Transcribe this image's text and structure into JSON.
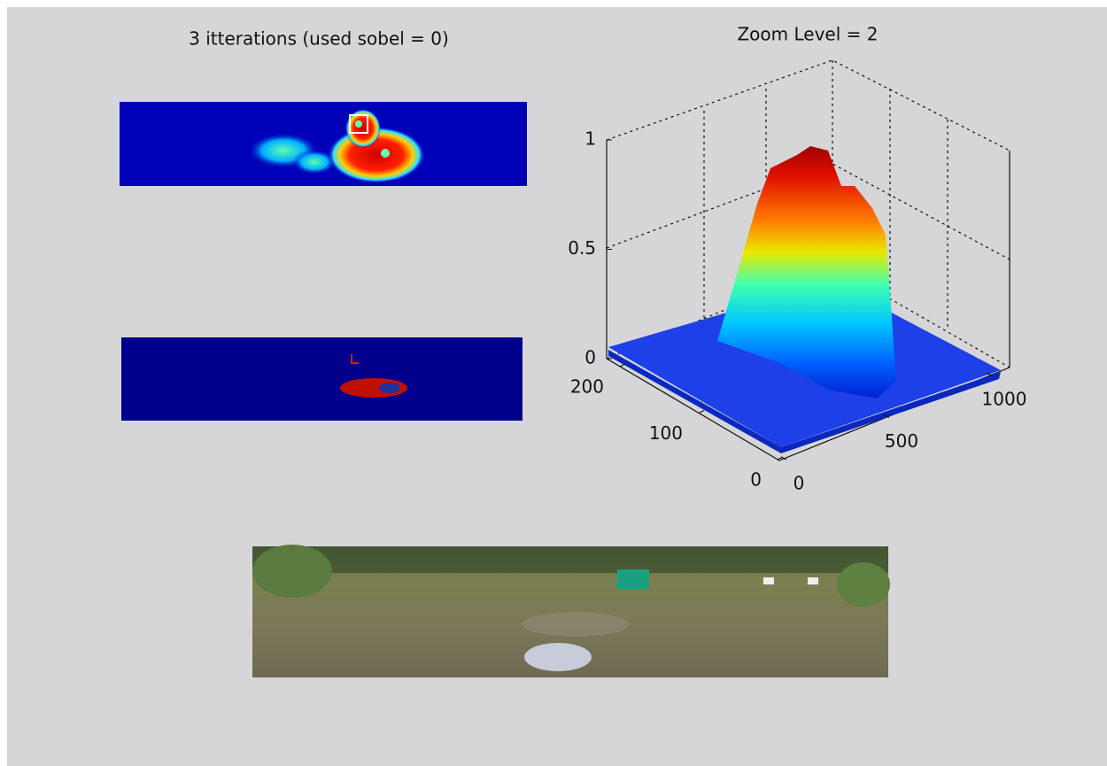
{
  "figure": {
    "left_title": "3 itterations (used sobel = 0)",
    "surface": {
      "title": "Zoom Level = 2",
      "zticks": [
        0,
        0.5,
        1
      ],
      "yticks": [
        0,
        100,
        200
      ],
      "xticks": [
        0,
        500,
        1000
      ]
    }
  }
}
